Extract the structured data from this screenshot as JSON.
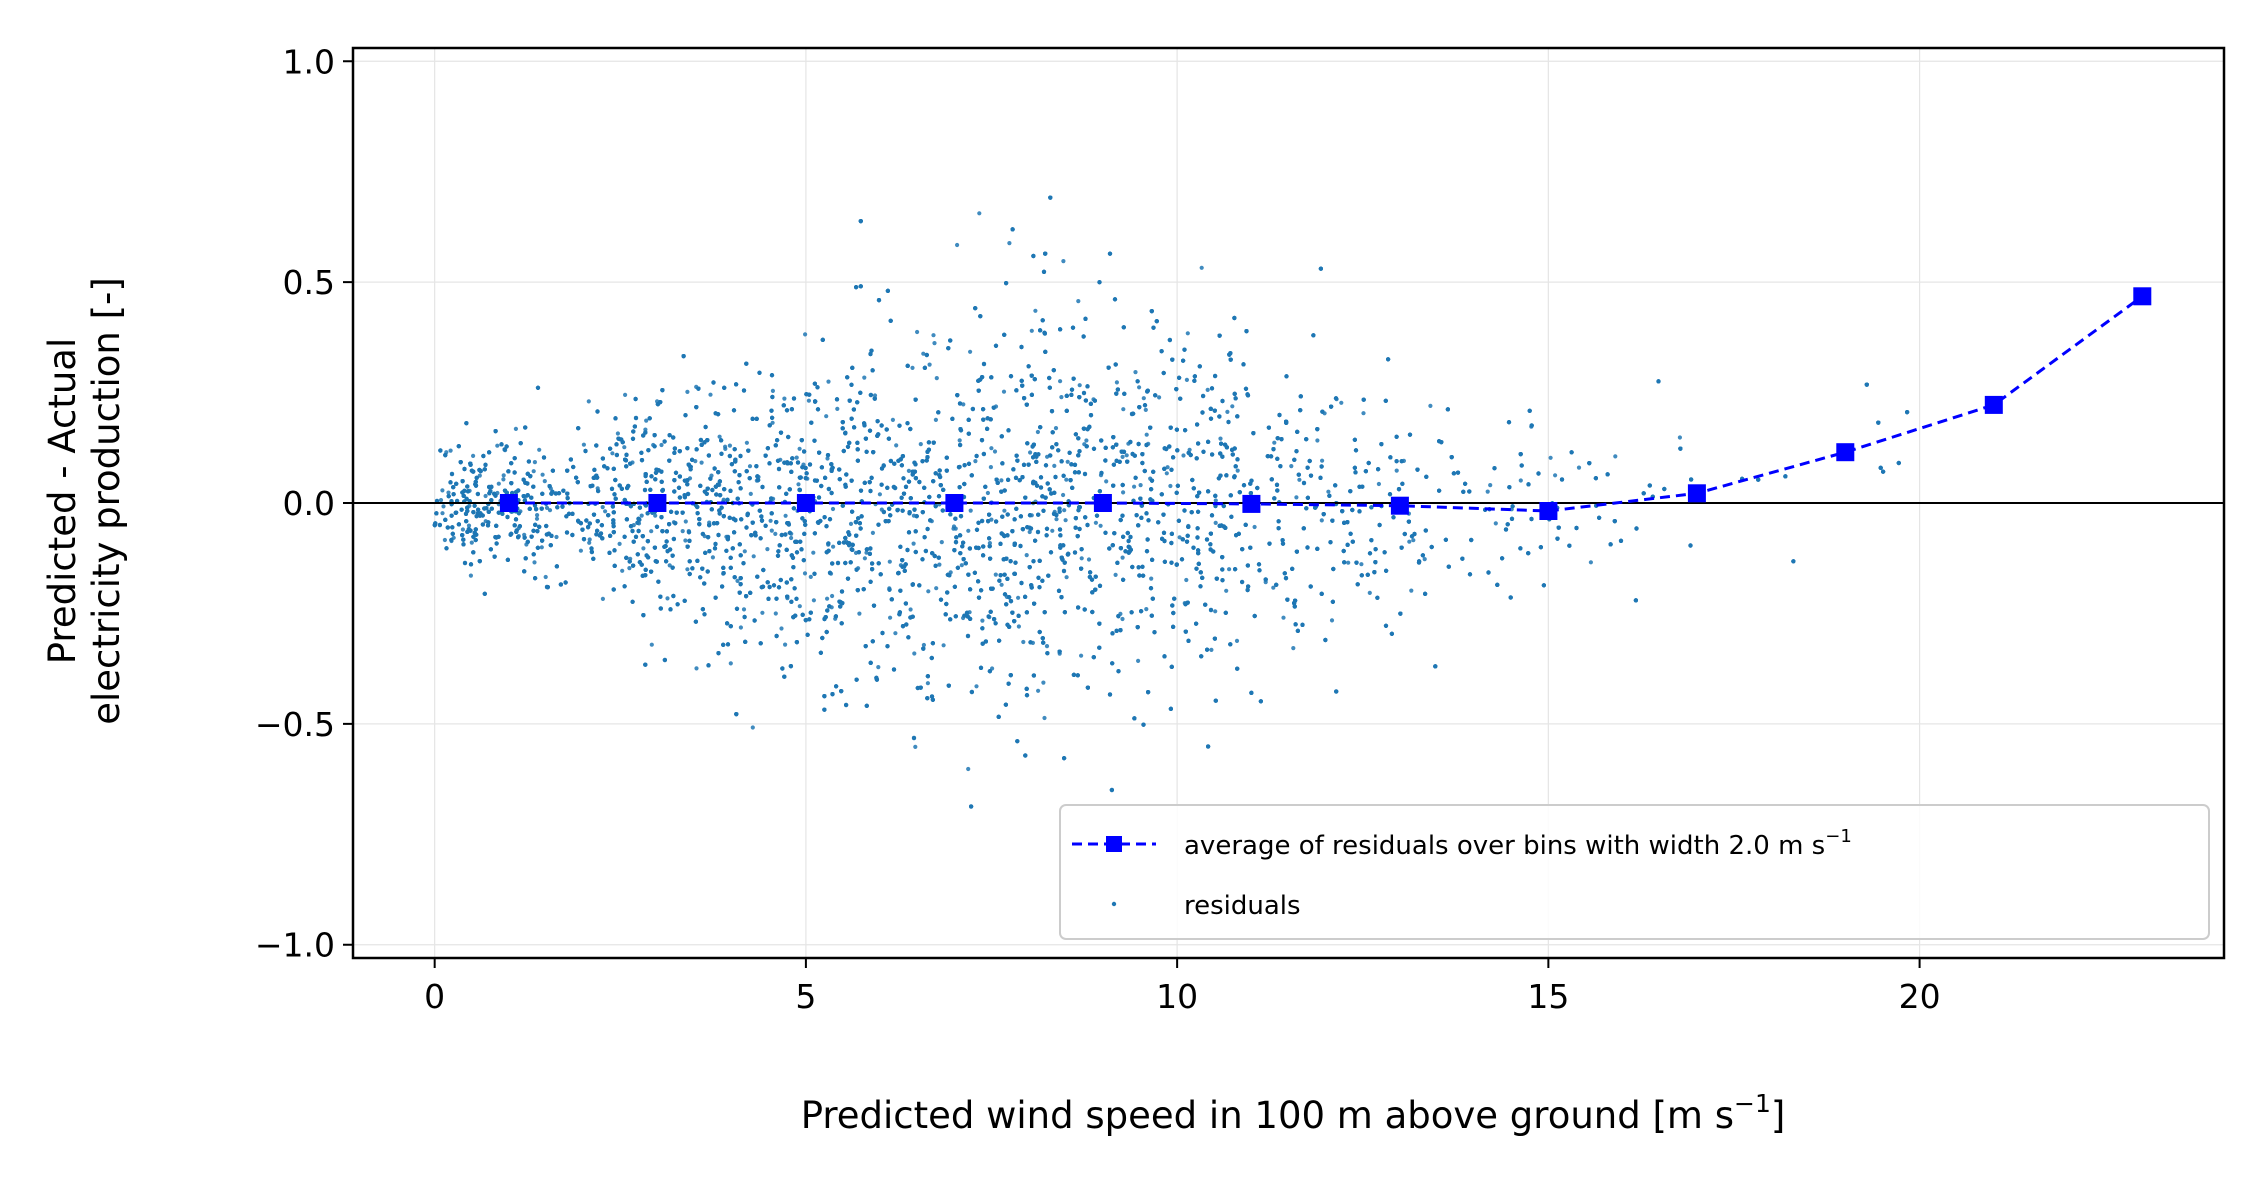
{
  "chart_data": {
    "type": "scatter",
    "title": "",
    "xlabel": "Predicted wind speed in 100 m above ground [m s",
    "xlabel_sup": "−1",
    "xlabel_tail": "]",
    "ylabel_line1": "Predicted - Actual",
    "ylabel_line2": "electricity production [-]",
    "xlim": [
      -1.1,
      24.1
    ],
    "ylim": [
      -1.03,
      1.03
    ],
    "x_ticks": [
      0,
      5,
      10,
      15,
      20
    ],
    "x_tick_labels": [
      "0",
      "5",
      "10",
      "15",
      "20"
    ],
    "y_ticks": [
      -1.0,
      -0.5,
      0.0,
      0.5,
      1.0
    ],
    "y_tick_labels": [
      "−1.0",
      "−0.5",
      "0.0",
      "0.5",
      "1.0"
    ],
    "grid": true,
    "legend_position": "lower-right",
    "reference_line_y": 0.0,
    "series": [
      {
        "name": "average of residuals over bins with width 2.0 m s",
        "name_sup": "−1",
        "type": "line",
        "style": "dashed",
        "marker": "square",
        "color": "#0000ff",
        "x": [
          1,
          3,
          5,
          7,
          9,
          11,
          13,
          15,
          17,
          19,
          21,
          23
        ],
        "y": [
          0.0,
          0.0,
          0.0,
          0.0,
          0.0,
          -0.002,
          -0.006,
          -0.018,
          0.022,
          0.115,
          0.222,
          0.468
        ]
      },
      {
        "name": "residuals",
        "type": "scatter",
        "marker": "point",
        "color": "#1f77b4",
        "edge_color": "#ffffff",
        "description_envelope": {
          "x": [
            0.0,
            2.0,
            4.0,
            6.0,
            8.0,
            10.0,
            12.0,
            14.0,
            16.0,
            18.0,
            20.0,
            22.0
          ],
          "spread": [
            0.1,
            0.17,
            0.28,
            0.38,
            0.42,
            0.38,
            0.3,
            0.22,
            0.18,
            0.15,
            0.18,
            0.2
          ],
          "center": [
            0.0,
            0.0,
            -0.02,
            -0.03,
            0.0,
            0.0,
            -0.02,
            -0.03,
            0.0,
            0.05,
            0.15,
            0.3
          ],
          "relative_density": [
            0.6,
            0.8,
            1.0,
            1.0,
            1.0,
            0.8,
            0.45,
            0.2,
            0.06,
            0.02,
            0.008,
            0.004
          ]
        }
      }
    ]
  }
}
